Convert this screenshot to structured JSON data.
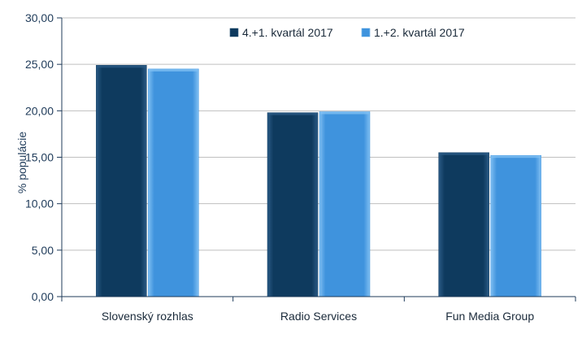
{
  "chart_data": {
    "type": "bar",
    "title": "",
    "xlabel": "",
    "ylabel": "% populácie",
    "categories": [
      "Slovenský rozhlas",
      "Radio Services",
      "Fun Media Group"
    ],
    "series": [
      {
        "name": "4.+1. kvartál 2017",
        "values": [
          24.9,
          19.8,
          15.5
        ]
      },
      {
        "name": "1.+2. kvartál 2017",
        "values": [
          24.5,
          19.9,
          15.2
        ]
      }
    ],
    "ylim": [
      0,
      30
    ],
    "yticks": [
      "0,00",
      "5,00",
      "10,00",
      "15,00",
      "20,00",
      "25,00",
      "30,00"
    ],
    "grid": true,
    "legend_position": "top-right",
    "colors": {
      "series": [
        "#0e3a5e",
        "#3f93dd"
      ],
      "series_highlight": [
        "#2a5a85",
        "#7fbff2"
      ],
      "grid": "#bfbfbf",
      "axis": "#1f3b5a"
    }
  }
}
